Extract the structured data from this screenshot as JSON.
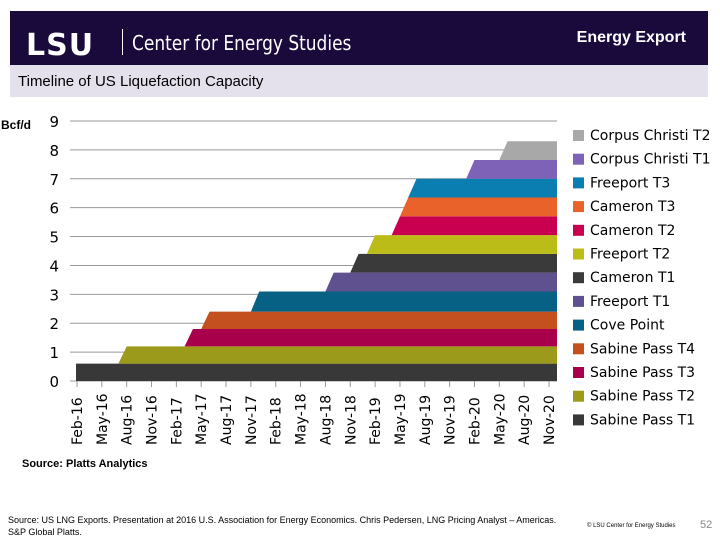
{
  "header": {
    "logo": "LSU",
    "org": "Center for Energy Studies",
    "section": "Energy Export"
  },
  "slide_title": "Timeline of US Liquefaction Capacity",
  "chart_data": {
    "type": "area",
    "ylabel": "Bcf/d",
    "ylim": [
      0,
      9
    ],
    "yticks": [
      0,
      1,
      2,
      3,
      4,
      5,
      6,
      7,
      8,
      9
    ],
    "xticks": [
      "Feb-16",
      "May-16",
      "Aug-16",
      "Nov-16",
      "Feb-17",
      "May-17",
      "Aug-17",
      "Nov-17",
      "Feb-18",
      "May-18",
      "Aug-18",
      "Nov-18",
      "Feb-19",
      "May-19",
      "Aug-19",
      "Nov-19",
      "Feb-20",
      "May-20",
      "Aug-20",
      "Nov-20"
    ],
    "grid": true,
    "stacked": true,
    "legend_position": "right",
    "source_note": "Source: Platts Analytics",
    "series": [
      {
        "name": "Sabine Pass T1",
        "start": "Feb-16",
        "capacity": 0.6,
        "color": "#383838"
      },
      {
        "name": "Sabine Pass T2",
        "start": "Aug-16",
        "capacity": 0.6,
        "color": "#9c9a1a"
      },
      {
        "name": "Sabine Pass T3",
        "start": "Apr-17",
        "capacity": 0.6,
        "color": "#a8004a"
      },
      {
        "name": "Sabine Pass T4",
        "start": "Jun-17",
        "capacity": 0.6,
        "color": "#c4501f"
      },
      {
        "name": "Cove Point",
        "start": "Dec-17",
        "capacity": 0.7,
        "color": "#076185"
      },
      {
        "name": "Freeport T1",
        "start": "Sep-18",
        "capacity": 0.65,
        "color": "#5f5090"
      },
      {
        "name": "Cameron T1",
        "start": "Dec-18",
        "capacity": 0.65,
        "color": "#3a3a3a"
      },
      {
        "name": "Freeport T2",
        "start": "Feb-19",
        "capacity": 0.65,
        "color": "#bcbc18"
      },
      {
        "name": "Cameron T2",
        "start": "May-19",
        "capacity": 0.65,
        "color": "#c8004f"
      },
      {
        "name": "Cameron T3",
        "start": "Jun-19",
        "capacity": 0.65,
        "color": "#e8622a"
      },
      {
        "name": "Freeport T3",
        "start": "Jul-19",
        "capacity": 0.65,
        "color": "#0a7eb0"
      },
      {
        "name": "Corpus Christi T1",
        "start": "Feb-20",
        "capacity": 0.65,
        "color": "#7d62b8"
      },
      {
        "name": "Corpus Christi T2",
        "start": "Jun-20",
        "capacity": 0.65,
        "color": "#a8a8a8"
      }
    ]
  },
  "footer": {
    "source": "Source:  US LNG Exports. Presentation at 2016 U.S. Association for Energy Economics. Chris Pedersen, LNG Pricing Analyst – Americas.",
    "source2": "S&P Global Platts.",
    "copyright": "© LSU Center for Energy Studies",
    "page": "52"
  }
}
